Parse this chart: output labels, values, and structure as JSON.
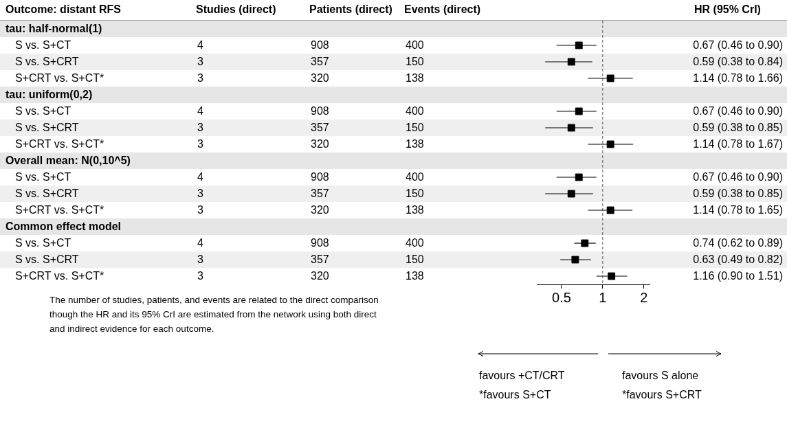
{
  "chart_data": [
    {
      "type": "other",
      "ylabel": "Outcome: distant RFS",
      "data_labels": true,
      "categories": [
        "tau: half-normal(1)",
        "S vs. S+CT",
        "S vs. S+CRT",
        "S+CRT vs. S+CT*",
        "tau: uniform(0,2)",
        "S vs. S+CT",
        "S vs. S+CRT",
        "S+CRT vs. S+CT*",
        "Overall mean: N(0,10^5)",
        "S vs. S+CT",
        "S vs. S+CRT",
        "S+CRT vs. S+CT*",
        "Common effect model",
        "S vs. S+CT",
        "S vs. S+CRT",
        "S+CRT vs. S+CT*"
      ],
      "series": [
        {
          "name": "Studies (direct)",
          "values": [
            null,
            4,
            3,
            3,
            null,
            4,
            3,
            3,
            null,
            4,
            3,
            3,
            null,
            4,
            3,
            3
          ]
        },
        {
          "name": "Patients (direct)",
          "values": [
            null,
            908,
            357,
            320,
            null,
            908,
            357,
            320,
            null,
            908,
            357,
            320,
            null,
            908,
            357,
            320
          ]
        },
        {
          "name": "Events (direct)",
          "values": [
            null,
            400,
            150,
            138,
            null,
            400,
            150,
            138,
            null,
            400,
            150,
            138,
            null,
            400,
            150,
            138
          ]
        }
      ],
      "annotations": [
        "The number of studies, patients, and events are related to the direct comparison though the HR and its 95% CrI are estimated from the network using both direct and indirect evidence for each outcome."
      ]
    },
    {
      "type": "scatter",
      "orientation": "horizontal",
      "categories": [
        null,
        null,
        null,
        null,
        null,
        null,
        null,
        null,
        null,
        null,
        null,
        null,
        null,
        null,
        null,
        null
      ],
      "series": [
        {
          "name": "HR (95% CrI)",
          "color": "#000000",
          "values": [
            null,
            0.67,
            0.59,
            1.14,
            null,
            0.67,
            0.59,
            1.14,
            null,
            0.67,
            0.59,
            1.14,
            null,
            0.74,
            0.63,
            1.16
          ],
          "errors": [
            null,
            [
              0.46,
              0.9
            ],
            [
              0.38,
              0.84
            ],
            [
              0.78,
              1.66
            ],
            null,
            [
              0.46,
              0.9
            ],
            [
              0.38,
              0.85
            ],
            [
              0.78,
              1.67
            ],
            null,
            [
              0.46,
              0.9
            ],
            [
              0.38,
              0.85
            ],
            [
              0.78,
              1.65
            ],
            null,
            [
              0.62,
              0.89
            ],
            [
              0.49,
              0.82
            ],
            [
              0.9,
              1.51
            ]
          ],
          "value_labels": [
            null,
            "0.67 (0.46 to 0.90)",
            "0.59 (0.38 to 0.84)",
            "1.14 (0.78 to 1.66)",
            null,
            "0.67 (0.46 to 0.90)",
            "0.59 (0.38 to 0.85)",
            "1.14 (0.78 to 1.67)",
            null,
            "0.67 (0.46 to 0.90)",
            "0.59 (0.38 to 0.85)",
            "1.14 (0.78 to 1.65)",
            null,
            "0.74 (0.62 to 0.89)",
            "0.63 (0.49 to 0.82)",
            "1.16 (0.90 to 1.51)"
          ]
        }
      ],
      "log": "x",
      "xlim": [
        0.33,
        2.2
      ],
      "xticks": [
        0.5,
        1,
        2
      ],
      "grid": false,
      "legend": false,
      "marker": "square",
      "ref_lines": [
        {
          "axis": "x",
          "value": 1,
          "label": null,
          "color": "#555555",
          "line_style": "dashed"
        }
      ],
      "annotations": [
        "favours +CT/CRT",
        "favours S alone",
        "*favours S+CT",
        "*favours S+CRT"
      ]
    }
  ]
}
